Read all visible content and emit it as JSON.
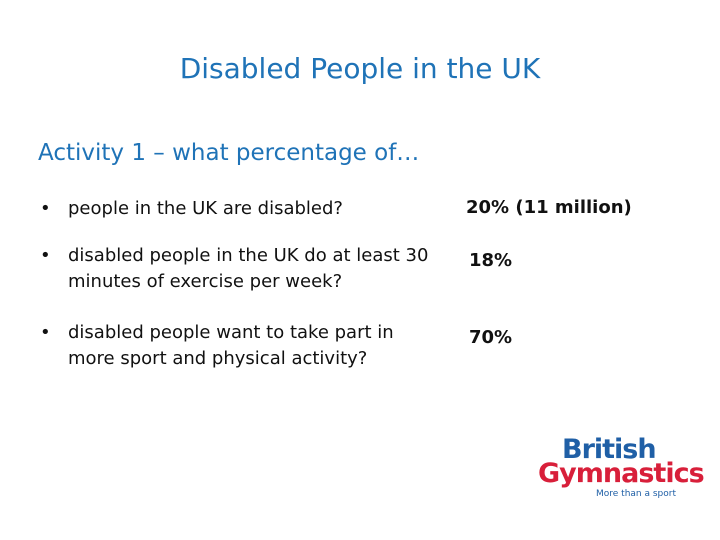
{
  "slide": {
    "title": "Disabled People in the UK",
    "subtitle": "Activity 1 – what percentage of…",
    "bullet_char": "•",
    "items": [
      {
        "question": "people in the UK are disabled?",
        "answer": "20% (11 million)"
      },
      {
        "question": "disabled people in the UK do at least 30 minutes of exercise per week?",
        "answer": "18%"
      },
      {
        "question": "disabled people want to take part in more sport and physical activity?",
        "answer": "70%"
      }
    ]
  },
  "logo": {
    "line1": "British",
    "line2": "Gymnastics",
    "tagline": "More than a sport",
    "colors": {
      "blue": "#1f5fa6",
      "red": "#d81f3a"
    }
  },
  "colors": {
    "heading": "#1f73b7",
    "text": "#111111",
    "background": "#ffffff"
  }
}
